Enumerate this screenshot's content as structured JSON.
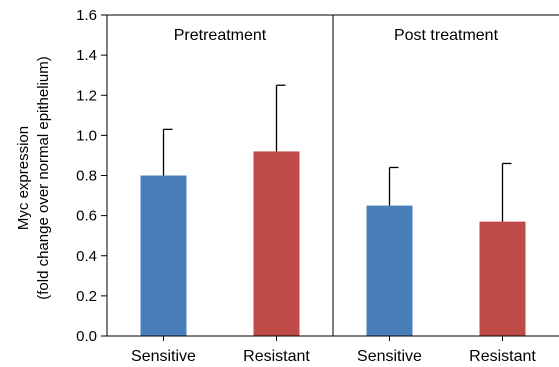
{
  "chart_data": {
    "type": "bar",
    "ylabel_line1": "Myc expression",
    "ylabel_line2": "(fold change over normal epithelium)",
    "ylim": [
      0,
      1.6
    ],
    "yticks": [
      "0.0",
      "0.2",
      "0.4",
      "0.6",
      "0.8",
      "1.0",
      "1.2",
      "1.4",
      "1.6"
    ],
    "grid": false,
    "panels": [
      {
        "title": "Pretreatment",
        "categories": [
          "Sensitive",
          "Resistant"
        ],
        "values": [
          0.8,
          0.92
        ],
        "errors": [
          0.23,
          0.33
        ]
      },
      {
        "title": "Post treatment",
        "categories": [
          "Sensitive",
          "Resistant"
        ],
        "values": [
          0.65,
          0.57
        ],
        "errors": [
          0.19,
          0.29
        ]
      }
    ],
    "colors": {
      "Sensitive": "#4a7ebb",
      "Resistant": "#be4b48"
    }
  }
}
